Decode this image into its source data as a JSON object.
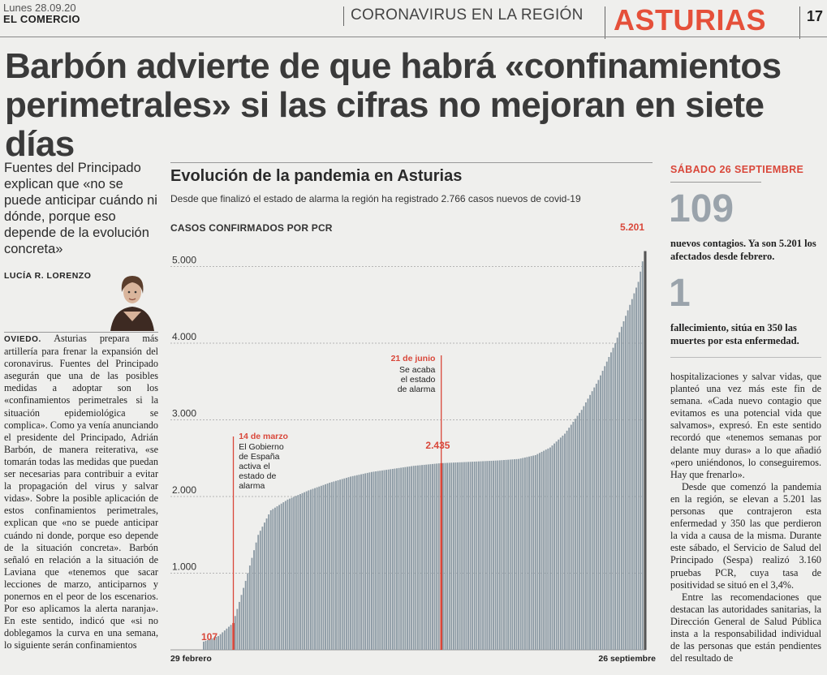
{
  "header": {
    "date": "Lunes 28.09.20",
    "paper": "EL COMERCIO",
    "section": "CORONAVIRUS EN LA REGIÓN",
    "region": "ASTURIAS",
    "page": "17"
  },
  "headline": "Barbón advierte de que habrá «confinamientos perimetrales» si las cifras no mejoran en siete días",
  "lead": "Fuentes del Principado explican que «no se puede anticipar cuándo ni dónde, porque eso depende de la evolución concreta»",
  "author": "LUCÍA R. LORENZO",
  "body_left": {
    "city": "OVIEDO.",
    "text": " Asturias prepara más artillería para frenar la expansión del coronavirus. Fuentes del Principado asegurán que una de las posibles medidas a adoptar son los «confinamientos perimetrales si la situación epidemiológica se complica». Como ya venía anunciando el presidente del Principado, Adrián Barbón, de manera reiterativa, «se tomarán todas las medidas que puedan ser necesarias para contribuir a evitar la propagación del virus y salvar vidas». Sobre la posible aplicación de estos confinamientos perimetrales, explican que «no se puede anticipar cuándo ni donde, porque eso depende de la situación concreta». Barbón señaló en relación a la situación de Laviana que «tenemos que sacar lecciones de marzo, anticiparnos y ponernos en el peor de los escenarios. Por eso aplicamos la alerta naranja». En este sentido, indicó que «si no doblegamos la curva en una semana, lo siguiente serán confinamientos"
  },
  "chart_data": {
    "type": "bar",
    "title": "Evolución de la pandemia en Asturias",
    "subtitle": "Desde que finalizó el estado de alarma la región ha registrado 2.766 casos nuevos de covid-19",
    "ylabel": "CASOS CONFIRMADOS POR PCR",
    "yticks": [
      "5.000",
      "4.000",
      "3.000",
      "2.000",
      "1.000"
    ],
    "ylim": [
      0,
      5200
    ],
    "x_start_label": "29 febrero",
    "x_end_label": "26 septiembre",
    "daily_cumulative_keypoints": [
      [
        0,
        107
      ],
      [
        7,
        180
      ],
      [
        14,
        350
      ],
      [
        20,
        900
      ],
      [
        26,
        1500
      ],
      [
        32,
        1820
      ],
      [
        40,
        1960
      ],
      [
        50,
        2080
      ],
      [
        60,
        2180
      ],
      [
        70,
        2260
      ],
      [
        80,
        2320
      ],
      [
        90,
        2360
      ],
      [
        100,
        2400
      ],
      [
        113,
        2435
      ],
      [
        125,
        2450
      ],
      [
        140,
        2470
      ],
      [
        150,
        2490
      ],
      [
        158,
        2540
      ],
      [
        165,
        2640
      ],
      [
        172,
        2820
      ],
      [
        180,
        3130
      ],
      [
        188,
        3520
      ],
      [
        196,
        4000
      ],
      [
        203,
        4500
      ],
      [
        207,
        4800
      ],
      [
        210,
        5201
      ]
    ],
    "annotations": [
      {
        "date": "14 de marzo",
        "text": "El Gobierno de España activa el estado de alarma"
      },
      {
        "date": "21 de junio",
        "text": "Se acaba el estado de alarma"
      }
    ],
    "labels": {
      "start_value": "107",
      "mid_value": "2.435",
      "end_value": "5.201"
    },
    "colors": {
      "bars": "#8c9aa4",
      "highlight": "#d9473a",
      "end_bar": "#555555"
    }
  },
  "right": {
    "date": "SÁBADO 26 SEPTIEMBRE",
    "num1": "109",
    "num1_text": "nuevos contagios. Ya son 5.201 los afectados desde febrero.",
    "num2": "1",
    "num2_text": "fallecimiento, sitúa en 350 las muertes por esta enfermedad.",
    "body_p1": "hospitalizaciones y salvar vidas, que planteó una vez más este fin de semana. «Cada nuevo contagio que evitamos es una potencial vida que salvamos», expresó. En este sentido recordó que «tenemos semanas por delante muy duras» a lo que añadió «pero uniéndonos, lo conseguiremos. Hay que frenarlo».",
    "body_p2": "Desde que comenzó la pandemia en la región, se elevan a 5.201 las personas que contrajeron esta enfermedad y 350 las que perdieron la vida a causa de la misma. Durante este sábado, el Servicio de Salud del Principado (Sespa) realizó 3.160 pruebas PCR, cuya tasa de positividad se situó en el 3,4%.",
    "body_p3": "Entre las recomendaciones que destacan las autoridades sanitarias, la Dirección General de Salud Pública insta a la responsabilidad individual de las personas que están pendientes del resultado de"
  }
}
